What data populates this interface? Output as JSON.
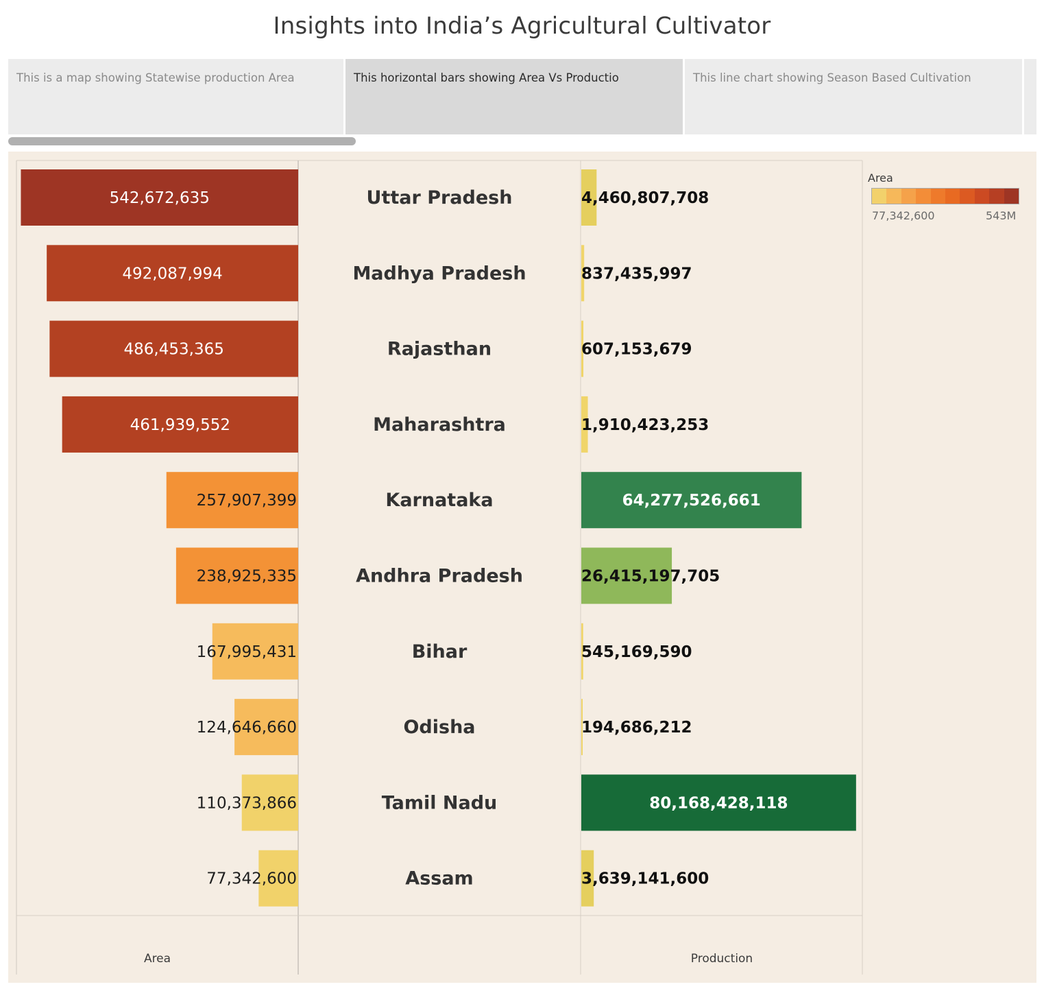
{
  "title": "Insights into India’s Agricultural Cultivator",
  "tabs": [
    {
      "label": "This is a map showing  Statewise production Area",
      "active": false
    },
    {
      "label": "This horizontal bars showing Area Vs Productio",
      "active": true
    },
    {
      "label": "This line chart showing Season Based Cultivation",
      "active": false
    },
    {
      "label": "",
      "active": false
    }
  ],
  "legend": {
    "title": "Area",
    "min_label": "77,342,600",
    "max_label": "543M",
    "colors": [
      "#f2d16b",
      "#f6b85a",
      "#f5a24a",
      "#f38d38",
      "#ee7a2b",
      "#e86a22",
      "#dc5a22",
      "#cc4a22",
      "#b63f23",
      "#9e3524"
    ]
  },
  "chart_data": {
    "type": "bar",
    "states": [
      "Uttar Pradesh",
      "Madhya Pradesh",
      "Rajasthan",
      "Maharashtra",
      "Karnataka",
      "Andhra Pradesh",
      "Bihar",
      "Odisha",
      "Tamil Nadu",
      "Assam"
    ],
    "area": [
      542672635,
      492087994,
      486453365,
      461939552,
      257907399,
      238925335,
      167995431,
      124646660,
      110373866,
      77342600
    ],
    "area_labels": [
      "542,672,635",
      "492,087,994",
      "486,453,365",
      "461,939,552",
      "257,907,399",
      "238,925,335",
      "167,995,431",
      "124,646,660",
      "110,373,866",
      "77,342,600"
    ],
    "area_colors": [
      "#9e3524",
      "#b34122",
      "#b34122",
      "#b34122",
      "#f39236",
      "#f39236",
      "#f6bb5c",
      "#f6bb5c",
      "#f1d26a",
      "#f1d26a"
    ],
    "production": [
      4460807708,
      837435997,
      607153679,
      1910423253,
      64277526661,
      26415197705,
      545169590,
      194686212,
      80168428118,
      3639141600
    ],
    "production_labels": [
      "4,460,807,708",
      "837,435,997",
      "607,153,679",
      "1,910,423,253",
      "64,277,526,661",
      "26,415,197,705",
      "545,169,590",
      "194,686,212",
      "80,168,428,118",
      "3,639,141,600"
    ],
    "production_colors": [
      "#e5cf5e",
      "#f0d56a",
      "#f0d56a",
      "#f0d56a",
      "#33834d",
      "#8fb85a",
      "#f0d56a",
      "#f0d56a",
      "#176b38",
      "#e5cf5e"
    ],
    "xlabel_area": "Area",
    "xlabel_production": "Production",
    "area_max": 550000000,
    "production_max": 82000000000
  }
}
